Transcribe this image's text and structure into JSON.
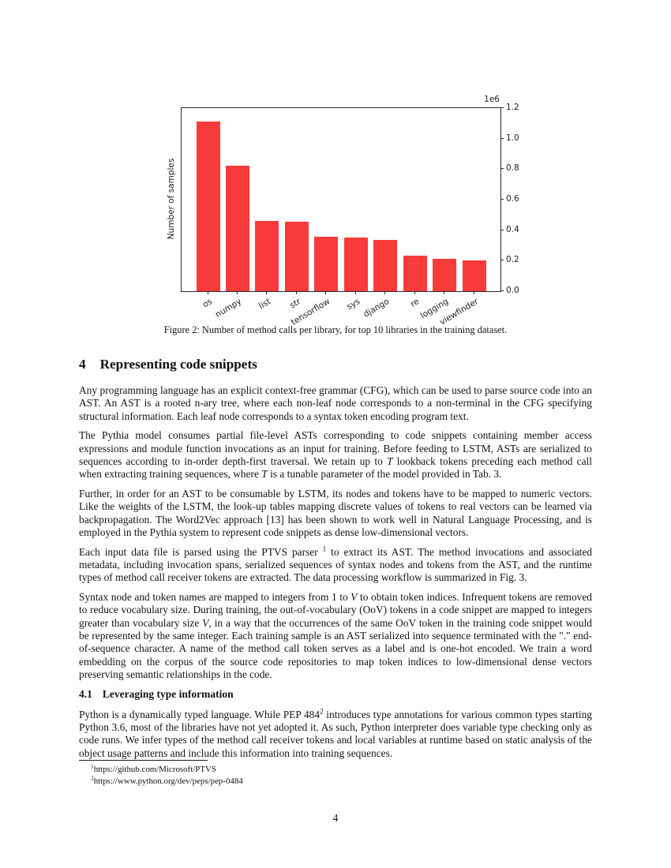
{
  "figure": {
    "caption": "Figure 2: Number of method calls per library, for top 10 libraries in the training dataset."
  },
  "chart_data": {
    "type": "bar",
    "title": "",
    "xlabel": "",
    "ylabel": "Number of samples",
    "categories": [
      "os",
      "numpy",
      "list",
      "str",
      "tensorflow",
      "sys",
      "django",
      "re",
      "logging",
      "viewfinder"
    ],
    "values": [
      1110000,
      820000,
      460000,
      455000,
      355000,
      352000,
      335000,
      232000,
      212000,
      203000
    ],
    "ylim": [
      0,
      1200000
    ],
    "ytick_labels": [
      "0.0",
      "0.2",
      "0.4",
      "0.6",
      "0.8",
      "1.0",
      "1.2"
    ],
    "y_offset_label": "1e6",
    "bar_color": "#f83b3b",
    "grid": false,
    "legend": "none",
    "xtick_rotation_deg": -31,
    "ytick_side": "right"
  },
  "section": {
    "number": "4",
    "title": "Representing code snippets"
  },
  "subsection": {
    "number": "4.1",
    "title": "Leveraging type information"
  },
  "paragraphs": [
    {
      "segments": [
        {
          "text": "Any programming language has an explicit context-free grammar (CFG), which can be used to parse source code into an AST. An AST is a rooted n-ary tree, where each non-leaf node corresponds to a non-terminal in the CFG specifying structural information. Each leaf node corresponds to a syntax token encoding program text."
        }
      ]
    },
    {
      "segments": [
        {
          "text": "The Pythia model consumes partial file-level ASTs corresponding to code snippets containing member access expressions and module function invocations as an input for training. Before feeding to LSTM, ASTs are serialized to sequences according to in-order depth-first traversal. We retain up to "
        },
        {
          "text": "T",
          "style": "italic"
        },
        {
          "text": " lookback tokens preceding each method call when extracting training sequences, where "
        },
        {
          "text": "T",
          "style": "italic"
        },
        {
          "text": " is a tunable parameter of the model provided in Tab. 3."
        }
      ]
    },
    {
      "segments": [
        {
          "text": "Further, in order for an AST to be consumable by LSTM, its nodes and tokens have to be mapped to numeric vectors. Like the weights of the LSTM, the look-up tables mapping discrete values of tokens to real vectors can be learned via backpropagation. The Word2Vec approach [13] has been shown to work well in Natural Language Processing, and is employed in the Pythia system to represent code snippets as dense low-dimensional vectors."
        }
      ]
    },
    {
      "segments": [
        {
          "text": "Each input data file is parsed using the PTVS parser "
        },
        {
          "text": "1",
          "style": "sup"
        },
        {
          "text": " to extract its AST. The method invocations and associated metadata, including invocation spans, serialized sequences of syntax nodes and tokens from the AST, and the runtime types of method call receiver tokens are extracted. The data processing workflow is summarized in Fig. 3."
        }
      ]
    },
    {
      "segments": [
        {
          "text": "Syntax node and token names are mapped to integers from 1 to "
        },
        {
          "text": "V",
          "style": "italic"
        },
        {
          "text": " to obtain token indices.  Infrequent tokens are removed to reduce vocabulary size. During training, the out-of-vocabulary (OoV) tokens in a code snippet are mapped to integers greater than vocabulary size "
        },
        {
          "text": "V",
          "style": "italic"
        },
        {
          "text": ", in a way that the occurrences of the same OoV token in the training code snippet would be represented by the same integer. Each training sample is an AST serialized into sequence terminated with the \".\" end-of-sequence character. A name of the method call token serves as a label and is one-hot encoded. We train a word embedding on the corpus of the source code repositories to map token indices to low-dimensional dense vectors preserving semantic relationships in the code."
        }
      ]
    },
    {
      "segments": [
        {
          "text": "Python is a dynamically typed language. While PEP 484"
        },
        {
          "text": "2",
          "style": "sup"
        },
        {
          "text": " introduces type annotations for various common types starting Python 3.6, most of the libraries have not yet adopted it.  As such, Python interpreter does variable type checking only as code runs. We infer types of the method call receiver tokens and local variables at runtime based on static analysis of the object usage patterns and include this information into training sequences."
        }
      ]
    }
  ],
  "footnotes": [
    {
      "marker": "1",
      "text": "https://github.com/Microsoft/PTVS"
    },
    {
      "marker": "2",
      "text": "https://www.python.org/dev/peps/pep-0484"
    }
  ],
  "footer": {
    "page_number": "4"
  }
}
